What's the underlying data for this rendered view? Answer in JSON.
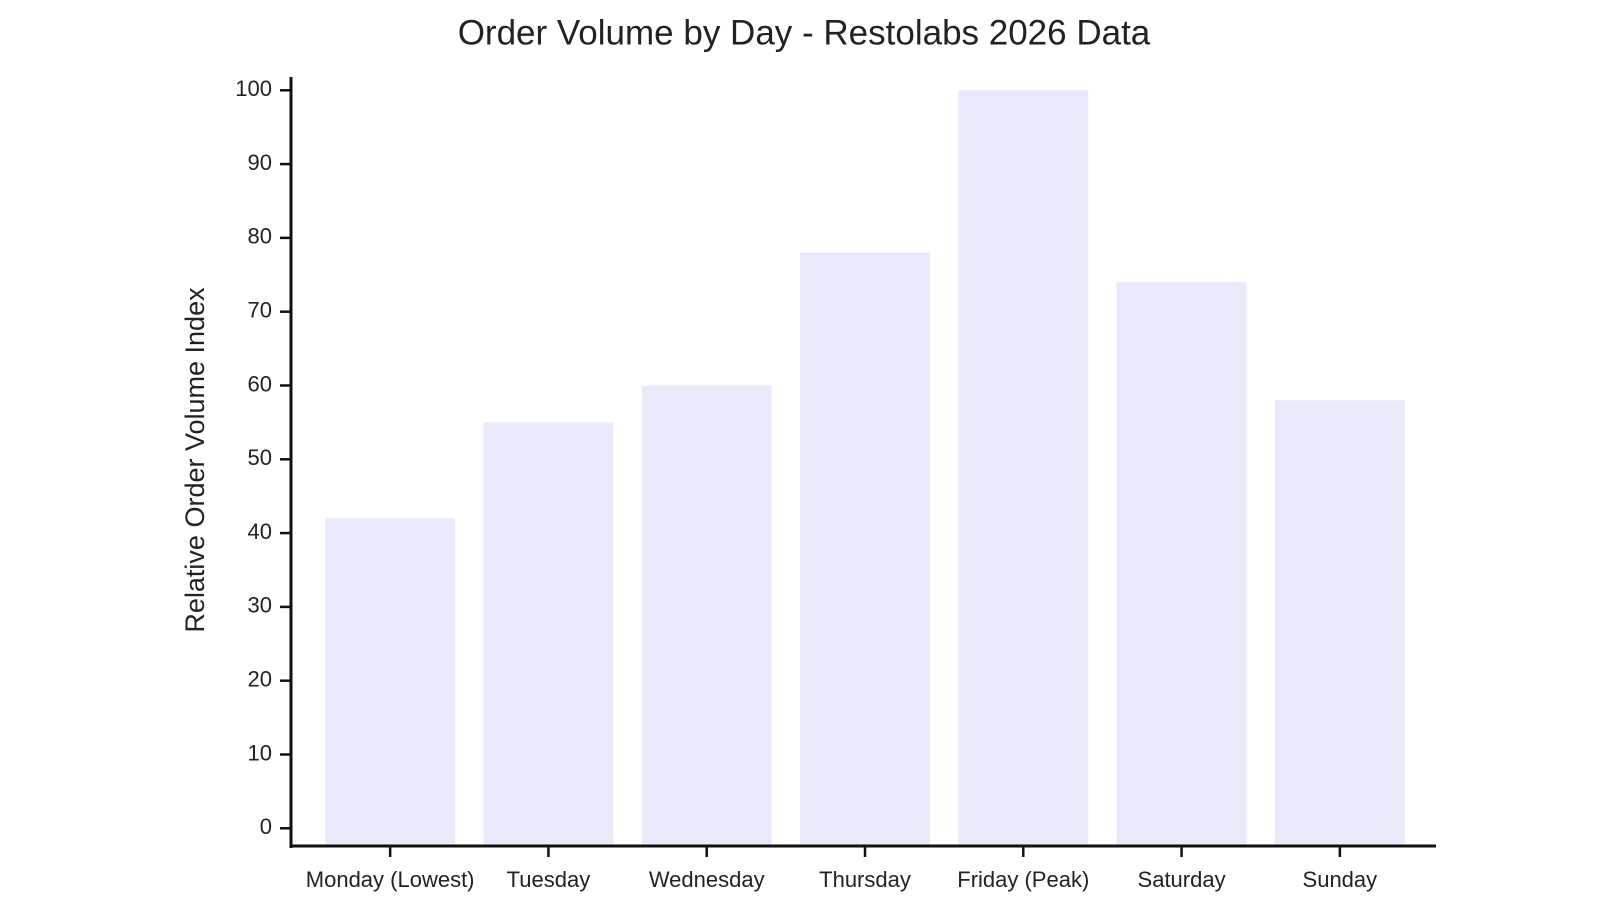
{
  "chart_data": {
    "type": "bar",
    "title": "Order Volume by Day - Restolabs 2026 Data",
    "y_label": "Relative Order Volume Index",
    "categories": [
      "Monday (Lowest)",
      "Tuesday",
      "Wednesday",
      "Thursday",
      "Friday (Peak)",
      "Saturday",
      "Sunday"
    ],
    "values": [
      42,
      55,
      60,
      78,
      100,
      74,
      58
    ],
    "color": "#e9e9fc",
    "ylim": [
      -2.4,
      101.8
    ],
    "yticks": [
      0,
      10,
      20,
      30,
      40,
      50,
      60,
      70,
      80,
      90,
      100
    ],
    "grid": false
  }
}
